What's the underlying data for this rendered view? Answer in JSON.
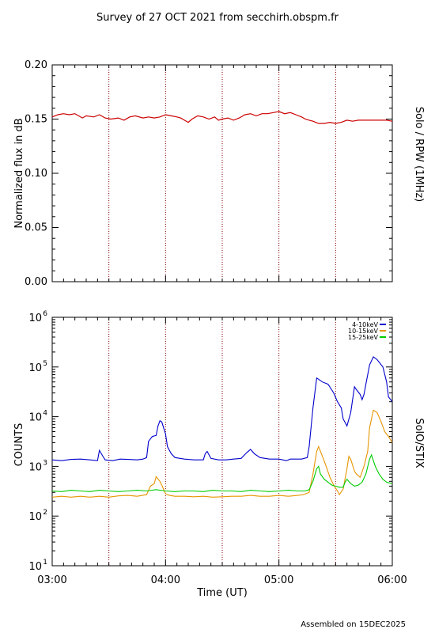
{
  "page": {
    "title": "Survey of 27 OCT 2021 from secchirh.obspm.fr",
    "footer": "Assembled on 15DEC2025"
  },
  "chart_data": [
    {
      "type": "line",
      "panel": "top",
      "right_label": "Solo / RPW (1MHz)",
      "ylabel": "Normalized flux in dB",
      "xlabel": "",
      "xlim": [
        0,
        180
      ],
      "x_unit": "minutes since 03:00 UT",
      "ylim": [
        0.0,
        0.2
      ],
      "y_scale": "linear",
      "yticks": [
        "0.00",
        "0.05",
        "0.10",
        "0.15",
        "0.20"
      ],
      "xticks": [],
      "vlines_x": [
        30,
        60,
        90,
        120,
        150
      ],
      "grid": false,
      "color": "#cc0000",
      "series": [
        {
          "name": "",
          "points": [
            [
              0,
              0.152
            ],
            [
              3,
              0.154
            ],
            [
              6,
              0.155
            ],
            [
              9,
              0.154
            ],
            [
              12,
              0.155
            ],
            [
              16,
              0.151
            ],
            [
              18,
              0.153
            ],
            [
              22,
              0.152
            ],
            [
              25,
              0.154
            ],
            [
              28,
              0.151
            ],
            [
              31,
              0.15
            ],
            [
              35,
              0.151
            ],
            [
              38,
              0.149
            ],
            [
              41,
              0.152
            ],
            [
              44,
              0.153
            ],
            [
              48,
              0.151
            ],
            [
              51,
              0.152
            ],
            [
              54,
              0.151
            ],
            [
              57,
              0.152
            ],
            [
              60,
              0.154
            ],
            [
              63,
              0.153
            ],
            [
              66,
              0.152
            ],
            [
              68,
              0.151
            ],
            [
              70,
              0.149
            ],
            [
              72,
              0.147
            ],
            [
              74,
              0.15
            ],
            [
              77,
              0.153
            ],
            [
              80,
              0.152
            ],
            [
              83,
              0.15
            ],
            [
              86,
              0.152
            ],
            [
              88,
              0.149
            ],
            [
              90,
              0.15
            ],
            [
              93,
              0.151
            ],
            [
              96,
              0.149
            ],
            [
              99,
              0.151
            ],
            [
              102,
              0.154
            ],
            [
              105,
              0.155
            ],
            [
              108,
              0.153
            ],
            [
              111,
              0.155
            ],
            [
              114,
              0.155
            ],
            [
              117,
              0.156
            ],
            [
              120,
              0.157
            ],
            [
              123,
              0.155
            ],
            [
              126,
              0.156
            ],
            [
              129,
              0.154
            ],
            [
              132,
              0.152
            ],
            [
              134,
              0.15
            ],
            [
              136,
              0.149
            ],
            [
              138,
              0.148
            ],
            [
              141,
              0.146
            ],
            [
              144,
              0.146
            ],
            [
              147,
              0.147
            ],
            [
              150,
              0.146
            ],
            [
              153,
              0.147
            ],
            [
              156,
              0.149
            ],
            [
              159,
              0.148
            ],
            [
              162,
              0.149
            ],
            [
              165,
              0.149
            ],
            [
              168,
              0.149
            ],
            [
              171,
              0.149
            ],
            [
              174,
              0.149
            ],
            [
              177,
              0.149
            ],
            [
              180,
              0.148
            ]
          ]
        }
      ]
    },
    {
      "type": "line",
      "panel": "bottom",
      "right_label": "SolO/STIX",
      "ylabel": "COUNTS",
      "xlabel": "Time (UT)",
      "xlim": [
        0,
        180
      ],
      "x_unit": "minutes since 03:00 UT",
      "xticks": [
        "03:00",
        "04:00",
        "05:00",
        "06:00"
      ],
      "ylim": [
        10,
        1000000
      ],
      "y_scale": "log",
      "ytick_exponents": [
        "1",
        "2",
        "3",
        "4",
        "5",
        "6"
      ],
      "vlines_x": [
        30,
        60,
        90,
        120,
        150
      ],
      "grid": false,
      "legend_position": "top-right",
      "series": [
        {
          "name": "4-10keV",
          "color": "#0000cc",
          "points": [
            [
              0,
              1350
            ],
            [
              5,
              1300
            ],
            [
              10,
              1380
            ],
            [
              15,
              1400
            ],
            [
              20,
              1350
            ],
            [
              24,
              1300
            ],
            [
              25,
              2100
            ],
            [
              27,
              1550
            ],
            [
              28,
              1350
            ],
            [
              32,
              1300
            ],
            [
              36,
              1400
            ],
            [
              40,
              1380
            ],
            [
              45,
              1350
            ],
            [
              48,
              1400
            ],
            [
              50,
              1500
            ],
            [
              51,
              3200
            ],
            [
              53,
              4000
            ],
            [
              55,
              4200
            ],
            [
              56,
              6500
            ],
            [
              57,
              8300
            ],
            [
              58,
              7800
            ],
            [
              60,
              4500
            ],
            [
              61,
              2500
            ],
            [
              63,
              1800
            ],
            [
              65,
              1500
            ],
            [
              70,
              1400
            ],
            [
              75,
              1350
            ],
            [
              80,
              1350
            ],
            [
              81,
              1800
            ],
            [
              82,
              2000
            ],
            [
              84,
              1450
            ],
            [
              88,
              1350
            ],
            [
              92,
              1350
            ],
            [
              96,
              1400
            ],
            [
              100,
              1450
            ],
            [
              103,
              1900
            ],
            [
              105,
              2200
            ],
            [
              107,
              1800
            ],
            [
              110,
              1500
            ],
            [
              115,
              1400
            ],
            [
              120,
              1400
            ],
            [
              124,
              1300
            ],
            [
              126,
              1400
            ],
            [
              128,
              1400
            ],
            [
              132,
              1400
            ],
            [
              135,
              1500
            ],
            [
              136,
              2500
            ],
            [
              138,
              15000
            ],
            [
              140,
              60000
            ],
            [
              143,
              50000
            ],
            [
              146,
              45000
            ],
            [
              149,
              30000
            ],
            [
              151,
              20000
            ],
            [
              153,
              15000
            ],
            [
              154,
              9000
            ],
            [
              156,
              6500
            ],
            [
              158,
              12000
            ],
            [
              160,
              40000
            ],
            [
              161,
              35000
            ],
            [
              163,
              28000
            ],
            [
              164,
              22000
            ],
            [
              165,
              28000
            ],
            [
              166,
              45000
            ],
            [
              168,
              110000
            ],
            [
              170,
              160000
            ],
            [
              172,
              140000
            ],
            [
              175,
              100000
            ],
            [
              177,
              50000
            ],
            [
              178,
              25000
            ],
            [
              180,
              20000
            ]
          ]
        },
        {
          "name": "10-15keV",
          "color": "#e69500",
          "points": [
            [
              0,
              240
            ],
            [
              5,
              250
            ],
            [
              10,
              240
            ],
            [
              15,
              250
            ],
            [
              20,
              240
            ],
            [
              25,
              250
            ],
            [
              30,
              240
            ],
            [
              35,
              255
            ],
            [
              40,
              260
            ],
            [
              45,
              250
            ],
            [
              50,
              270
            ],
            [
              52,
              400
            ],
            [
              54,
              450
            ],
            [
              55,
              620
            ],
            [
              57,
              500
            ],
            [
              58,
              420
            ],
            [
              60,
              280
            ],
            [
              62,
              260
            ],
            [
              65,
              250
            ],
            [
              70,
              250
            ],
            [
              75,
              245
            ],
            [
              80,
              250
            ],
            [
              85,
              240
            ],
            [
              90,
              245
            ],
            [
              95,
              250
            ],
            [
              100,
              250
            ],
            [
              105,
              260
            ],
            [
              110,
              250
            ],
            [
              115,
              250
            ],
            [
              120,
              260
            ],
            [
              125,
              250
            ],
            [
              130,
              260
            ],
            [
              133,
              270
            ],
            [
              136,
              300
            ],
            [
              138,
              700
            ],
            [
              140,
              2000
            ],
            [
              141,
              2500
            ],
            [
              143,
              1600
            ],
            [
              145,
              1000
            ],
            [
              147,
              600
            ],
            [
              149,
              420
            ],
            [
              151,
              320
            ],
            [
              152,
              270
            ],
            [
              154,
              350
            ],
            [
              156,
              900
            ],
            [
              157,
              1600
            ],
            [
              158,
              1400
            ],
            [
              160,
              800
            ],
            [
              161,
              700
            ],
            [
              163,
              600
            ],
            [
              165,
              1000
            ],
            [
              167,
              2000
            ],
            [
              168,
              6000
            ],
            [
              170,
              13500
            ],
            [
              172,
              12000
            ],
            [
              174,
              8000
            ],
            [
              176,
              5000
            ],
            [
              178,
              4000
            ],
            [
              180,
              3000
            ]
          ]
        },
        {
          "name": "15-25keV",
          "color": "#00cc00",
          "points": [
            [
              0,
              320
            ],
            [
              5,
              310
            ],
            [
              10,
              330
            ],
            [
              15,
              320
            ],
            [
              20,
              310
            ],
            [
              25,
              330
            ],
            [
              30,
              320
            ],
            [
              35,
              310
            ],
            [
              40,
              320
            ],
            [
              45,
              330
            ],
            [
              50,
              320
            ],
            [
              55,
              340
            ],
            [
              60,
              320
            ],
            [
              65,
              310
            ],
            [
              70,
              320
            ],
            [
              75,
              320
            ],
            [
              80,
              310
            ],
            [
              85,
              330
            ],
            [
              90,
              320
            ],
            [
              95,
              320
            ],
            [
              100,
              310
            ],
            [
              105,
              330
            ],
            [
              110,
              320
            ],
            [
              115,
              310
            ],
            [
              120,
              320
            ],
            [
              125,
              330
            ],
            [
              130,
              320
            ],
            [
              134,
              320
            ],
            [
              136,
              340
            ],
            [
              138,
              500
            ],
            [
              140,
              900
            ],
            [
              141,
              1000
            ],
            [
              142,
              700
            ],
            [
              144,
              550
            ],
            [
              146,
              480
            ],
            [
              148,
              420
            ],
            [
              150,
              400
            ],
            [
              152,
              380
            ],
            [
              154,
              380
            ],
            [
              155,
              480
            ],
            [
              156,
              550
            ],
            [
              158,
              450
            ],
            [
              160,
              400
            ],
            [
              162,
              420
            ],
            [
              164,
              480
            ],
            [
              166,
              700
            ],
            [
              168,
              1400
            ],
            [
              169,
              1700
            ],
            [
              171,
              1000
            ],
            [
              173,
              700
            ],
            [
              175,
              550
            ],
            [
              177,
              480
            ],
            [
              180,
              450
            ]
          ]
        }
      ]
    }
  ]
}
